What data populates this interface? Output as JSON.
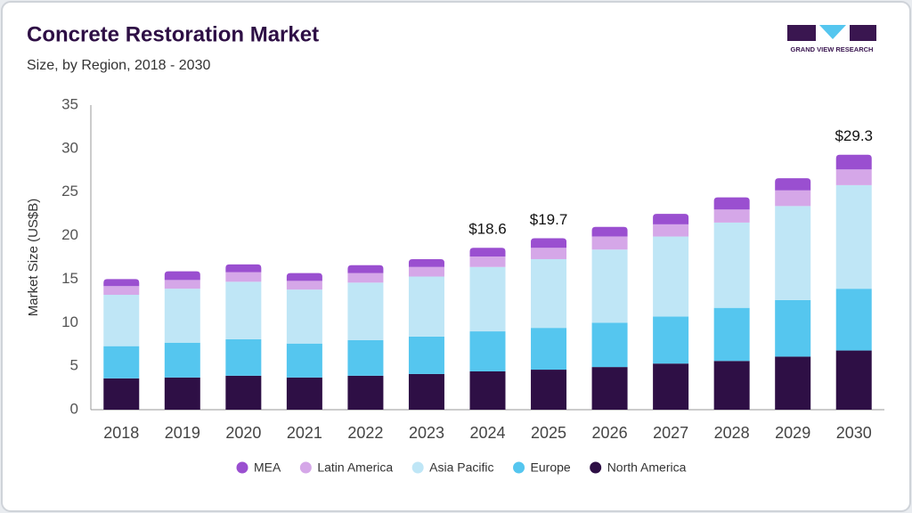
{
  "chart_data": {
    "type": "stacked_bar",
    "title": "Concrete Restoration Market",
    "subtitle": "Size, by Region, 2018 - 2030",
    "y_label": "Market Size (US$B)",
    "brand": "GRAND VIEW RESEARCH",
    "categories": [
      "2018",
      "2019",
      "2020",
      "2021",
      "2022",
      "2023",
      "2024",
      "2025",
      "2026",
      "2027",
      "2028",
      "2029",
      "2030"
    ],
    "series": [
      {
        "name": "North America",
        "color": "#2e0f45",
        "values": [
          3.6,
          3.7,
          3.9,
          3.7,
          3.9,
          4.1,
          4.4,
          4.6,
          4.9,
          5.3,
          5.6,
          6.1,
          6.8
        ]
      },
      {
        "name": "Europe",
        "color": "#55c6ef",
        "values": [
          3.7,
          4.0,
          4.2,
          3.9,
          4.1,
          4.3,
          4.6,
          4.8,
          5.1,
          5.4,
          6.1,
          6.5,
          7.1
        ]
      },
      {
        "name": "Asia Pacific",
        "color": "#bfe6f6",
        "values": [
          5.9,
          6.2,
          6.6,
          6.2,
          6.6,
          6.9,
          7.4,
          7.9,
          8.4,
          9.2,
          9.8,
          10.8,
          11.9
        ]
      },
      {
        "name": "Latin America",
        "color": "#d5a7e8",
        "values": [
          1.0,
          1.0,
          1.1,
          1.0,
          1.1,
          1.1,
          1.2,
          1.3,
          1.5,
          1.4,
          1.5,
          1.8,
          1.8
        ]
      },
      {
        "name": "MEA",
        "color": "#9a4fd0",
        "values": [
          0.8,
          1.0,
          0.9,
          0.9,
          0.9,
          0.9,
          1.0,
          1.1,
          1.1,
          1.2,
          1.4,
          1.4,
          1.7
        ]
      }
    ],
    "annotations": [
      {
        "category": "2024",
        "value": 18.6,
        "label": "$18.6"
      },
      {
        "category": "2025",
        "value": 19.7,
        "label": "$19.7"
      },
      {
        "category": "2030",
        "value": 29.3,
        "label": "$29.3"
      }
    ],
    "ylim": [
      0,
      35
    ],
    "yticks": [
      0,
      5,
      10,
      15,
      20,
      25,
      30,
      35
    ],
    "grid": false,
    "legend": "bottom"
  }
}
